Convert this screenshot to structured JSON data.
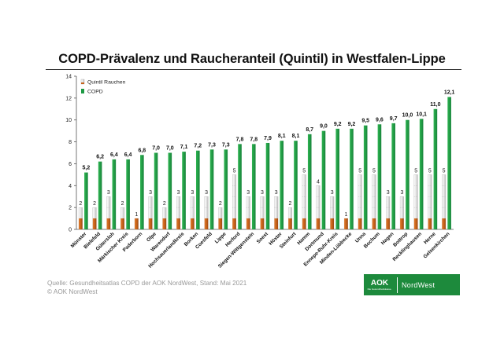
{
  "title": "COPD-Prävalenz und Raucheranteil (Quintil) in Westfalen-Lippe",
  "source_line1": "Quelle: Gesundheitsatlas COPD der AOK NordWest, Stand: Mai 2021",
  "source_line2": "© AOK NordWest",
  "logo": {
    "main": "AOK",
    "sub": "Die Gesundheitskasse.",
    "right": "NordWest"
  },
  "colors": {
    "copd": "#1e9a44",
    "smoking": "#c8631c"
  },
  "chart_data": {
    "type": "bar",
    "title": "COPD-Prävalenz und Raucheranteil (Quintil) in Westfalen-Lippe",
    "xlabel": "",
    "ylabel": "",
    "ylim": [
      0,
      14
    ],
    "yticks": [
      0,
      2,
      4,
      6,
      8,
      10,
      12,
      14
    ],
    "grid": false,
    "legend": {
      "position": "top-left",
      "entries": [
        "Quintil Rauchen",
        "COPD"
      ]
    },
    "categories": [
      "Münster",
      "Bielefeld",
      "Gütersloh",
      "Märkischer Kreis",
      "Paderborn",
      "Olpe",
      "Warendorf",
      "Hochsauerlandkreis",
      "Borken",
      "Coesfeld",
      "Lippe",
      "Herford",
      "Siegen-Wittgenstein",
      "Soest",
      "Höxter",
      "Steinfurt",
      "Hamm",
      "Dortmund",
      "Ennepe-Ruhr-Kreis",
      "Minden-Lübbecke",
      "Unna",
      "Bochum",
      "Hagen",
      "Bottrop",
      "Recklinghausen",
      "Herne",
      "Gelsenkirchen"
    ],
    "series": [
      {
        "name": "Quintil Rauchen",
        "values": [
          2,
          2,
          3,
          2,
          1,
          3,
          2,
          3,
          3,
          3,
          2,
          5,
          3,
          3,
          3,
          2,
          5,
          4,
          3,
          1,
          5,
          5,
          3,
          3,
          5,
          5,
          5
        ]
      },
      {
        "name": "COPD",
        "values": [
          5.2,
          6.2,
          6.4,
          6.4,
          6.8,
          7.0,
          7.0,
          7.1,
          7.2,
          7.3,
          7.3,
          7.8,
          7.8,
          7.9,
          8.1,
          8.1,
          8.7,
          9.0,
          9.2,
          9.2,
          9.5,
          9.6,
          9.7,
          10.0,
          10.1,
          11.0,
          12.1
        ]
      }
    ],
    "copd_labels": [
      "5,2",
      "6,2",
      "6,4",
      "6,4",
      "6,8",
      "7,0",
      "7,0",
      "7,1",
      "7,2",
      "7,3",
      "7,3",
      "7,8",
      "7,8",
      "7,9",
      "8,1",
      "8,1",
      "8,7",
      "9,0",
      "9,2",
      "9,2",
      "9,5",
      "9,6",
      "9,7",
      "10,0",
      "10,1",
      "11,0",
      "12,1"
    ]
  }
}
